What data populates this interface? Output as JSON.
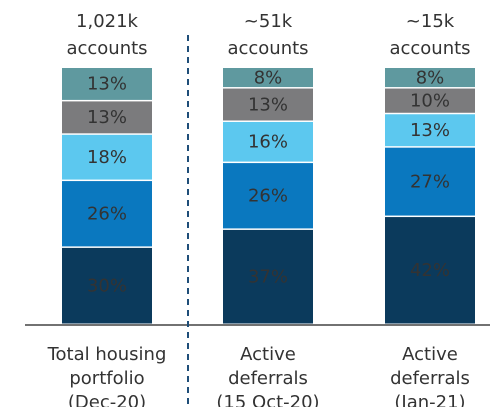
{
  "chart_data": {
    "type": "stacked_bar",
    "top_labels": [
      [
        "1,021k",
        "accounts"
      ],
      [
        "~51k",
        "accounts"
      ],
      [
        "~15k",
        "accounts"
      ]
    ],
    "categories": [
      [
        "Total housing",
        "portfolio",
        "(Dec-20)"
      ],
      [
        "Active",
        "deferrals",
        "(15 Oct-20)"
      ],
      [
        "Active",
        "deferrals",
        "(Jan-21)"
      ]
    ],
    "series": [
      {
        "color": "#0b3a5c",
        "label_color": "#ffffff",
        "values": [
          30,
          37,
          42
        ],
        "value_labels": [
          "30%",
          "37%",
          "42%"
        ]
      },
      {
        "color": "#0a78bf",
        "label_color": "#ffffff",
        "values": [
          26,
          26,
          27
        ],
        "value_labels": [
          "26%",
          "26%",
          "27%"
        ]
      },
      {
        "color": "#5cc8ef",
        "label_color": "#ffffff",
        "values": [
          18,
          16,
          13
        ],
        "value_labels": [
          "18%",
          "16%",
          "13%"
        ]
      },
      {
        "color": "#7b7b7d",
        "label_color": "#ffffff",
        "values": [
          13,
          13,
          10
        ],
        "value_labels": [
          "13%",
          "13%",
          "10%"
        ]
      },
      {
        "color": "#5f999f",
        "label_color": "#1f2d3a",
        "values": [
          13,
          8,
          8
        ],
        "value_labels": [
          "13%",
          "8%",
          "8%"
        ]
      }
    ]
  }
}
